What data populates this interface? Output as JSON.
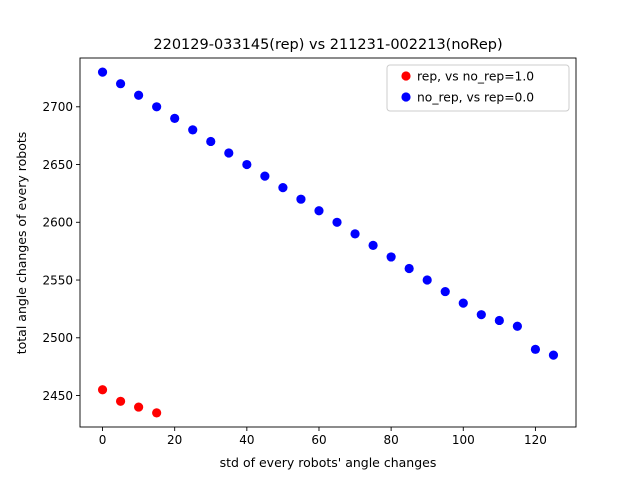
{
  "chart_data": {
    "type": "scatter",
    "title": "220129-033145(rep) vs 211231-002213(noRep)",
    "xlabel": "std of every robots' angle changes",
    "ylabel": "total angle changes of every robots",
    "xlim": [
      -6.25,
      131.25
    ],
    "ylim": [
      2422.75,
      2742.25
    ],
    "xticks": [
      0,
      20,
      40,
      60,
      80,
      100,
      120
    ],
    "yticks": [
      2450,
      2500,
      2550,
      2600,
      2650,
      2700
    ],
    "grid": false,
    "legend_position": "upper right",
    "series": [
      {
        "name": "rep, vs no_rep=1.0",
        "color": "#ff0000",
        "x": [
          0,
          5,
          10,
          15
        ],
        "y": [
          2455,
          2445,
          2440,
          2435
        ]
      },
      {
        "name": "no_rep, vs rep=0.0",
        "color": "#0000ff",
        "x": [
          0,
          5,
          10,
          15,
          20,
          25,
          30,
          35,
          40,
          45,
          50,
          55,
          60,
          65,
          70,
          75,
          80,
          85,
          90,
          95,
          100,
          105,
          110,
          115,
          120,
          125
        ],
        "y": [
          2730,
          2720,
          2710,
          2700,
          2690,
          2680,
          2670,
          2660,
          2650,
          2640,
          2630,
          2620,
          2610,
          2600,
          2590,
          2580,
          2570,
          2560,
          2550,
          2540,
          2530,
          2520,
          2515,
          2510,
          2490,
          2485
        ]
      }
    ]
  }
}
